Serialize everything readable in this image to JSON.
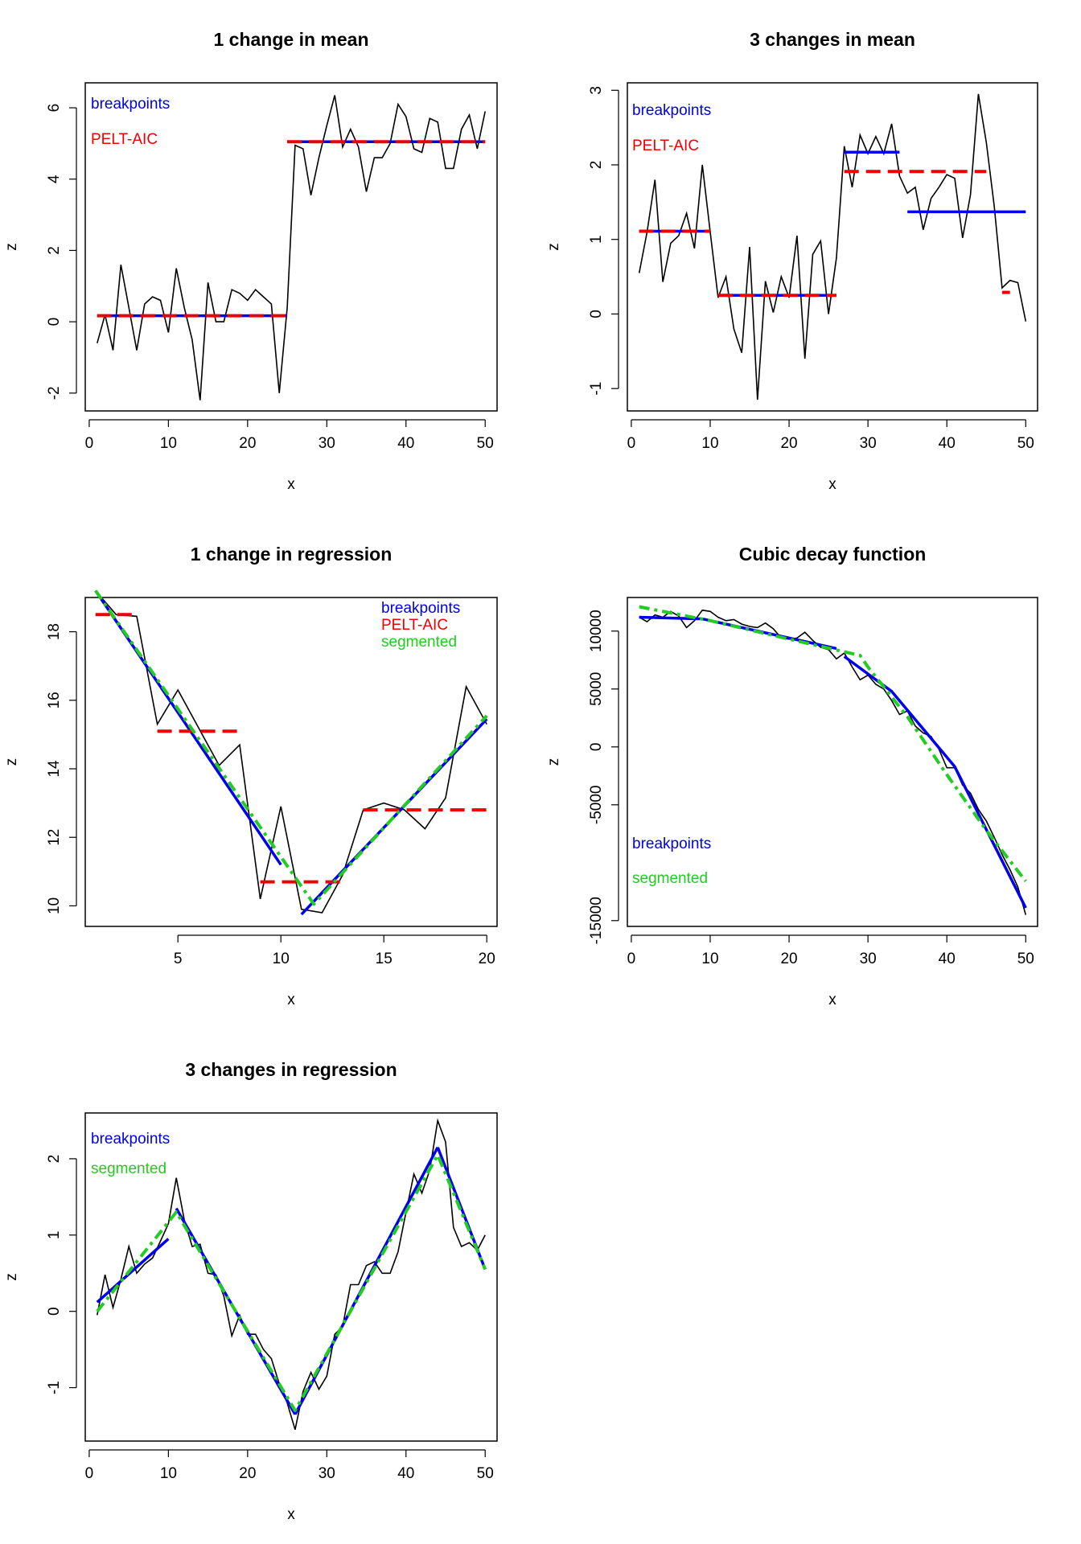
{
  "colors": {
    "data": "#000000",
    "breakpoints": "#0000ee",
    "pelt": "#ee0000",
    "segmented": "#22cc22"
  },
  "chart_data": [
    {
      "type": "line",
      "title": "1 change in mean",
      "xlabel": "x",
      "ylabel": "z",
      "xlim": [
        -0.5,
        51.5
      ],
      "ylim": [
        -2.5,
        6.7
      ],
      "xticks": [
        0,
        10,
        20,
        30,
        40,
        50
      ],
      "yticks": [
        -2,
        0,
        2,
        4,
        6
      ],
      "legend": [
        {
          "text": "breakpoints",
          "color": "#0000ee"
        },
        {
          "text": "PELT-AIC",
          "color": "#ee0000"
        }
      ],
      "x": [
        1,
        2,
        3,
        4,
        5,
        6,
        7,
        8,
        9,
        10,
        11,
        12,
        13,
        14,
        15,
        16,
        17,
        18,
        19,
        20,
        21,
        22,
        23,
        24,
        25,
        26,
        27,
        28,
        29,
        30,
        31,
        32,
        33,
        34,
        35,
        36,
        37,
        38,
        39,
        40,
        41,
        42,
        43,
        44,
        45,
        46,
        47,
        48,
        49,
        50
      ],
      "z": [
        -0.6,
        0.2,
        -0.8,
        1.6,
        0.4,
        -0.8,
        0.5,
        0.7,
        0.6,
        -0.3,
        1.5,
        0.4,
        -0.5,
        -2.2,
        1.1,
        0.0,
        0.0,
        0.9,
        0.8,
        0.6,
        0.9,
        0.7,
        0.5,
        -2.0,
        0.4,
        4.95,
        4.85,
        3.55,
        4.6,
        5.5,
        6.35,
        4.9,
        5.4,
        4.9,
        3.65,
        4.6,
        4.6,
        5.0,
        6.1,
        5.75,
        4.85,
        4.75,
        5.7,
        5.6,
        4.3,
        4.3,
        5.4,
        5.8,
        4.85,
        5.9
      ],
      "series": [
        {
          "name": "breakpoints",
          "style": "solid",
          "segments": [
            {
              "x": [
                1,
                25
              ],
              "z": [
                0.17,
                0.17
              ]
            },
            {
              "x": [
                25,
                50
              ],
              "z": [
                5.05,
                5.05
              ]
            }
          ]
        },
        {
          "name": "PELT-AIC",
          "style": "dashed",
          "segments": [
            {
              "x": [
                1,
                25
              ],
              "z": [
                0.17,
                0.17
              ]
            },
            {
              "x": [
                25,
                50
              ],
              "z": [
                5.05,
                5.05
              ]
            }
          ]
        }
      ]
    },
    {
      "type": "line",
      "title": "3 changes in mean",
      "xlabel": "x",
      "ylabel": "z",
      "xlim": [
        -0.5,
        51.5
      ],
      "ylim": [
        -1.3,
        3.1
      ],
      "xticks": [
        0,
        10,
        20,
        30,
        40,
        50
      ],
      "yticks": [
        -1,
        0,
        1,
        2,
        3
      ],
      "legend": [
        {
          "text": "breakpoints",
          "color": "#0000ee"
        },
        {
          "text": "PELT-AIC",
          "color": "#ee0000"
        }
      ],
      "x": [
        1,
        2,
        3,
        4,
        5,
        6,
        7,
        8,
        9,
        10,
        11,
        12,
        13,
        14,
        15,
        16,
        17,
        18,
        19,
        20,
        21,
        22,
        23,
        24,
        25,
        26,
        27,
        28,
        29,
        30,
        31,
        32,
        33,
        34,
        35,
        36,
        37,
        38,
        39,
        40,
        41,
        42,
        43,
        44,
        45,
        46,
        47,
        48,
        49,
        50
      ],
      "z": [
        0.55,
        1.1,
        1.8,
        0.43,
        0.95,
        1.05,
        1.35,
        0.88,
        2.0,
        1.1,
        0.22,
        0.5,
        -0.2,
        -0.52,
        0.9,
        -1.15,
        0.44,
        0.02,
        0.5,
        0.22,
        1.05,
        -0.6,
        0.8,
        0.98,
        0.0,
        0.75,
        2.25,
        1.7,
        2.4,
        2.15,
        2.38,
        2.15,
        2.55,
        1.85,
        1.62,
        1.7,
        1.13,
        1.55,
        1.7,
        1.87,
        1.82,
        1.02,
        1.6,
        2.95,
        2.3,
        1.45,
        0.35,
        0.45,
        0.42,
        -0.1
      ],
      "series": [
        {
          "name": "breakpoints",
          "style": "solid",
          "segments": [
            {
              "x": [
                1,
                10
              ],
              "z": [
                1.11,
                1.11
              ]
            },
            {
              "x": [
                11,
                26
              ],
              "z": [
                0.25,
                0.25
              ]
            },
            {
              "x": [
                27,
                34
              ],
              "z": [
                2.17,
                2.17
              ]
            },
            {
              "x": [
                35,
                50
              ],
              "z": [
                1.37,
                1.37
              ]
            }
          ]
        },
        {
          "name": "PELT-AIC",
          "style": "dashed",
          "segments": [
            {
              "x": [
                1,
                10
              ],
              "z": [
                1.11,
                1.11
              ]
            },
            {
              "x": [
                11,
                26
              ],
              "z": [
                0.25,
                0.25
              ]
            },
            {
              "x": [
                27,
                45
              ],
              "z": [
                1.91,
                1.91
              ]
            },
            {
              "x": [
                47,
                48
              ],
              "z": [
                0.29,
                0.29
              ]
            }
          ]
        }
      ]
    },
    {
      "type": "line",
      "title": "1 change in regression",
      "xlabel": "x",
      "ylabel": "z",
      "xlim": [
        0.5,
        20.5
      ],
      "ylim": [
        9.4,
        19.0
      ],
      "xticks": [
        5,
        10,
        15,
        20
      ],
      "yticks": [
        10,
        12,
        14,
        16,
        18
      ],
      "legend": [
        {
          "text": "breakpoints",
          "color": "#0000ee"
        },
        {
          "text": "PELT-AIC",
          "color": "#ee0000"
        },
        {
          "text": "segmented",
          "color": "#22cc22"
        }
      ],
      "x": [
        1,
        2,
        3,
        4,
        5,
        6,
        7,
        8,
        9,
        10,
        11,
        12,
        13,
        14,
        15,
        16,
        17,
        18,
        19,
        20
      ],
      "z": [
        19.2,
        18.5,
        18.45,
        15.3,
        16.3,
        15.2,
        14.1,
        14.7,
        10.2,
        12.9,
        9.9,
        9.8,
        10.9,
        12.8,
        13.0,
        12.8,
        12.25,
        13.15,
        16.4,
        15.3
      ],
      "series": [
        {
          "name": "breakpoints",
          "style": "solid",
          "segments": [
            {
              "x": [
                1,
                10
              ],
              "z": [
                19.2,
                11.2
              ]
            },
            {
              "x": [
                11,
                20
              ],
              "z": [
                9.75,
                15.45
              ]
            }
          ]
        },
        {
          "name": "PELT-AIC",
          "style": "dashed",
          "segments": [
            {
              "x": [
                1,
                3
              ],
              "z": [
                18.5,
                18.5
              ]
            },
            {
              "x": [
                4,
                8
              ],
              "z": [
                15.1,
                15.1
              ]
            },
            {
              "x": [
                9,
                13
              ],
              "z": [
                10.7,
                10.7
              ]
            },
            {
              "x": [
                14,
                20
              ],
              "z": [
                12.8,
                12.8
              ]
            }
          ]
        },
        {
          "name": "segmented",
          "style": "dotdash",
          "segments": [
            {
              "x": [
                1,
                11.6,
                20
              ],
              "z": [
                19.2,
                10.05,
                15.55
              ]
            }
          ]
        }
      ]
    },
    {
      "type": "line",
      "title": "Cubic decay function",
      "xlabel": "x",
      "ylabel": "z",
      "xlim": [
        -0.5,
        51.5
      ],
      "ylim": [
        -15500,
        12900
      ],
      "xticks": [
        0,
        10,
        20,
        30,
        40,
        50
      ],
      "yticks": [
        -15000,
        -5000,
        0,
        5000,
        10000
      ],
      "legend": [
        {
          "text": "breakpoints",
          "color": "#0000ee"
        },
        {
          "text": "segmented",
          "color": "#22cc22"
        }
      ],
      "x": [
        1,
        2,
        3,
        4,
        5,
        6,
        7,
        8,
        9,
        10,
        11,
        12,
        13,
        14,
        15,
        16,
        17,
        18,
        19,
        20,
        21,
        22,
        23,
        24,
        25,
        26,
        27,
        28,
        29,
        30,
        31,
        32,
        33,
        34,
        35,
        36,
        37,
        38,
        39,
        40,
        41,
        42,
        43,
        44,
        45,
        46,
        47,
        48,
        49,
        50
      ],
      "z": [
        11200,
        10800,
        11400,
        11200,
        11700,
        11300,
        10300,
        10900,
        11800,
        11700,
        11200,
        10900,
        11000,
        10600,
        10400,
        10300,
        10700,
        10200,
        9400,
        9300,
        9400,
        9900,
        9200,
        8600,
        8400,
        7600,
        8100,
        6900,
        5800,
        6200,
        5400,
        5000,
        4000,
        2800,
        3100,
        1800,
        1200,
        900,
        -200,
        -1800,
        -1800,
        -3300,
        -4000,
        -5400,
        -6400,
        -7800,
        -9300,
        -10600,
        -12100,
        -14500
      ],
      "series": [
        {
          "name": "breakpoints",
          "style": "solid",
          "segments": [
            {
              "x": [
                1,
                9,
                26
              ],
              "z": [
                11200,
                11050,
                8500
              ]
            },
            {
              "x": [
                27,
                33,
                41,
                50
              ],
              "z": [
                7800,
                4800,
                -1700,
                -13900
              ]
            }
          ]
        },
        {
          "name": "segmented",
          "style": "dotdash",
          "segments": [
            {
              "x": [
                1,
                10,
                20,
                29,
                30,
                35,
                40,
                45,
                50
              ],
              "z": [
                12100,
                10900,
                9300,
                7900,
                6900,
                2600,
                -2400,
                -7200,
                -11600
              ]
            }
          ]
        }
      ]
    },
    {
      "type": "line",
      "title": "3 changes in regression",
      "xlabel": "x",
      "ylabel": "z",
      "xlim": [
        -0.5,
        51.5
      ],
      "ylim": [
        -1.7,
        2.6
      ],
      "xticks": [
        0,
        10,
        20,
        30,
        40,
        50
      ],
      "yticks": [
        -1,
        0,
        1,
        2
      ],
      "legend": [
        {
          "text": "breakpoints",
          "color": "#0000ee"
        },
        {
          "text": "segmented",
          "color": "#22cc22"
        }
      ],
      "x": [
        1,
        2,
        3,
        4,
        5,
        6,
        7,
        8,
        9,
        10,
        11,
        12,
        13,
        14,
        15,
        16,
        17,
        18,
        19,
        20,
        21,
        22,
        23,
        24,
        25,
        26,
        27,
        28,
        29,
        30,
        31,
        32,
        33,
        34,
        35,
        36,
        37,
        38,
        39,
        40,
        41,
        42,
        43,
        44,
        45,
        46,
        47,
        48,
        49,
        50
      ],
      "z": [
        -0.05,
        0.48,
        0.05,
        0.42,
        0.85,
        0.5,
        0.62,
        0.7,
        0.92,
        1.15,
        1.75,
        1.2,
        0.85,
        0.88,
        0.5,
        0.48,
        0.2,
        -0.32,
        -0.05,
        -0.3,
        -0.3,
        -0.5,
        -0.62,
        -0.95,
        -1.2,
        -1.55,
        -1.05,
        -0.8,
        -1.02,
        -0.85,
        -0.3,
        -0.2,
        0.35,
        0.35,
        0.6,
        0.65,
        0.5,
        0.5,
        0.78,
        1.3,
        1.8,
        1.55,
        1.85,
        2.5,
        2.22,
        1.1,
        0.85,
        0.9,
        0.8,
        1.0
      ],
      "series": [
        {
          "name": "breakpoints",
          "style": "solid",
          "segments": [
            {
              "x": [
                1,
                10
              ],
              "z": [
                0.12,
                0.95
              ]
            },
            {
              "x": [
                11,
                26
              ],
              "z": [
                1.35,
                -1.35
              ]
            },
            {
              "x": [
                26,
                44
              ],
              "z": [
                -1.35,
                2.15
              ]
            },
            {
              "x": [
                44,
                50
              ],
              "z": [
                2.15,
                0.55
              ]
            }
          ]
        },
        {
          "name": "segmented",
          "style": "dotdash",
          "segments": [
            {
              "x": [
                1,
                11,
                26,
                44,
                50
              ],
              "z": [
                0.0,
                1.3,
                -1.3,
                2.05,
                0.55
              ]
            }
          ]
        }
      ]
    }
  ]
}
